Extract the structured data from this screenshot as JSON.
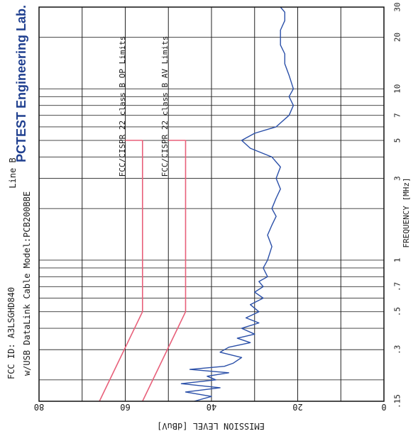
{
  "header": {
    "fcc_id": "FCC ID: A3LSGHD840",
    "model_line": "w/USB DataLink Cable Model:PCB200BBE",
    "line_label": "Line B",
    "lab_logo": "PCTEST Engineering Lab."
  },
  "colors": {
    "limit_lines": "#e8607a",
    "emission_trace": "#2a4fa8",
    "grid": "#222222",
    "logo": "#1f3f8f"
  },
  "chart_data": {
    "type": "line",
    "orientation": "rotated-90-clockwise",
    "xlabel": "FREQUENCY [MHz]",
    "ylabel": "EMISSION LEVEL [dBuV]",
    "x_scale": "log",
    "xlim": [
      0.15,
      30
    ],
    "ylim": [
      0,
      80
    ],
    "x_ticks": [
      {
        "value": 0.15,
        "label": ".15"
      },
      {
        "value": 0.3,
        "label": ".3"
      },
      {
        "value": 0.5,
        "label": ".5"
      },
      {
        "value": 0.7,
        "label": ".7"
      },
      {
        "value": 1,
        "label": "1"
      },
      {
        "value": 3,
        "label": "3"
      },
      {
        "value": 5,
        "label": "5"
      },
      {
        "value": 7,
        "label": "7"
      },
      {
        "value": 10,
        "label": "10"
      },
      {
        "value": 20,
        "label": "20"
      },
      {
        "value": 30,
        "label": "30"
      }
    ],
    "x_minor_grid": [
      0.15,
      0.2,
      0.3,
      0.4,
      0.5,
      0.6,
      0.7,
      0.8,
      0.9,
      1,
      2,
      3,
      4,
      5,
      6,
      7,
      8,
      9,
      10,
      20,
      30
    ],
    "y_ticks": [
      {
        "value": 0,
        "label": "0"
      },
      {
        "value": 20,
        "label": "20"
      },
      {
        "value": 40,
        "label": "40"
      },
      {
        "value": 60,
        "label": "60"
      },
      {
        "value": 80,
        "label": "80"
      }
    ],
    "grid": true,
    "series": [
      {
        "name": "FCC/CISPR 22 class B QP Limits",
        "color": "#e8607a",
        "x": [
          0.15,
          0.5,
          5,
          5
        ],
        "y": [
          66,
          56,
          56,
          60
        ]
      },
      {
        "name": "FCC/CISPR 22 class B AV Limits",
        "color": "#e8607a",
        "x": [
          0.15,
          0.5,
          5,
          5
        ],
        "y": [
          56,
          46,
          46,
          50
        ]
      },
      {
        "name": "",
        "color": "#2a4fa8",
        "x": [
          0.15,
          0.16,
          0.17,
          0.18,
          0.19,
          0.2,
          0.21,
          0.22,
          0.23,
          0.24,
          0.25,
          0.27,
          0.29,
          0.31,
          0.33,
          0.35,
          0.37,
          0.4,
          0.43,
          0.46,
          0.5,
          0.55,
          0.6,
          0.65,
          0.7,
          0.75,
          0.8,
          0.9,
          1.0,
          1.2,
          1.4,
          1.6,
          1.8,
          2.0,
          2.3,
          2.6,
          3.0,
          3.5,
          4.0,
          4.5,
          5.0,
          5.5,
          6.0,
          7.0,
          8.0,
          9.0,
          10,
          12,
          14,
          16,
          18,
          20,
          22,
          25,
          28,
          30
        ],
        "y": [
          44,
          40,
          46,
          38,
          47,
          39,
          41,
          36,
          45,
          37,
          35,
          33,
          38,
          36,
          31,
          34,
          30,
          33,
          29,
          32,
          29,
          31,
          28,
          30,
          28,
          29,
          27,
          28,
          27,
          26,
          27,
          26,
          25,
          26,
          25,
          24,
          25,
          24,
          26,
          31,
          33,
          30,
          25,
          22,
          21,
          22,
          21,
          22,
          23,
          23,
          24,
          24,
          24,
          23,
          23,
          24
        ]
      }
    ],
    "annotations": [
      "FCC/CISPR 22 class B QP Limits",
      "FCC/CISPR 22 class B AV Limits"
    ]
  }
}
